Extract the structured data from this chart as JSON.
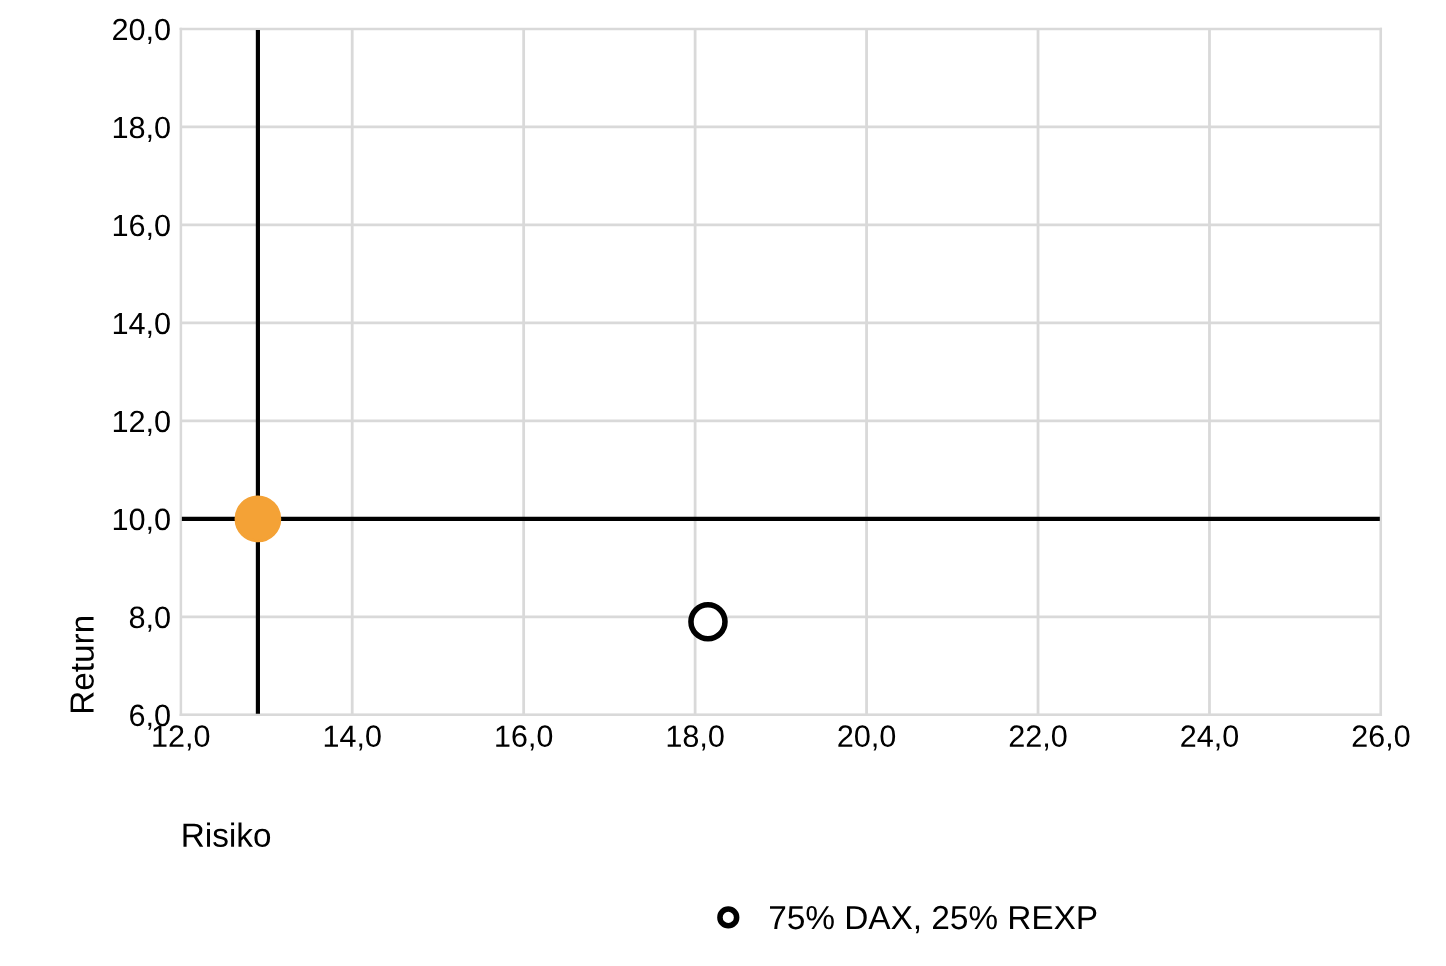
{
  "chart_data": {
    "type": "scatter",
    "xlabel": "Risiko",
    "ylabel": "Return",
    "series": [
      {
        "color": "#f4a236",
        "x": [
          12.9
        ],
        "values": [
          10.0
        ]
      },
      {
        "name": "75% DAX, 25% REXP",
        "color": "#000000",
        "x": [
          18.15
        ],
        "values": [
          7.9
        ],
        "marker": "circle"
      }
    ],
    "xlim": [
      12,
      26
    ],
    "ylim": [
      6,
      20
    ],
    "xticks": [
      {
        "value": 12,
        "label": "12,0"
      },
      {
        "value": 14,
        "label": "14,0"
      },
      {
        "value": 16,
        "label": "16,0"
      },
      {
        "value": 18,
        "label": "18,0"
      },
      {
        "value": 20,
        "label": "20,0"
      },
      {
        "value": 22,
        "label": "22,0"
      },
      {
        "value": 24,
        "label": "24,0"
      },
      {
        "value": 26,
        "label": "26,0"
      }
    ],
    "yticks": [
      {
        "value": 6,
        "label": "6,0"
      },
      {
        "value": 8,
        "label": "8,0"
      },
      {
        "value": 10,
        "label": "10,0"
      },
      {
        "value": 12,
        "label": "12,0"
      },
      {
        "value": 14,
        "label": "14,0"
      },
      {
        "value": 16,
        "label": "16,0"
      },
      {
        "value": 18,
        "label": "18,0"
      },
      {
        "value": 20,
        "label": "20,0"
      }
    ],
    "ref_lines": [
      {
        "axis": "x",
        "value": 12.9,
        "color": "#000000"
      },
      {
        "axis": "y",
        "value": 10,
        "color": "#000000"
      }
    ],
    "grid": true,
    "legend": "bottom"
  }
}
